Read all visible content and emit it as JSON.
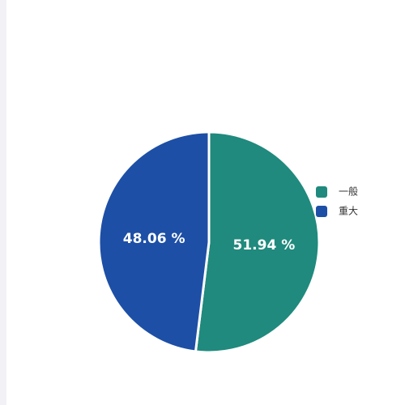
{
  "chart_data": {
    "type": "pie",
    "categories": [
      "一般",
      "重大"
    ],
    "values": [
      51.94,
      48.06
    ],
    "value_labels": [
      "51.94 %",
      "48.06 %"
    ],
    "colors": [
      "#1f8a7d",
      "#1d4fa6"
    ],
    "legend": "right"
  }
}
